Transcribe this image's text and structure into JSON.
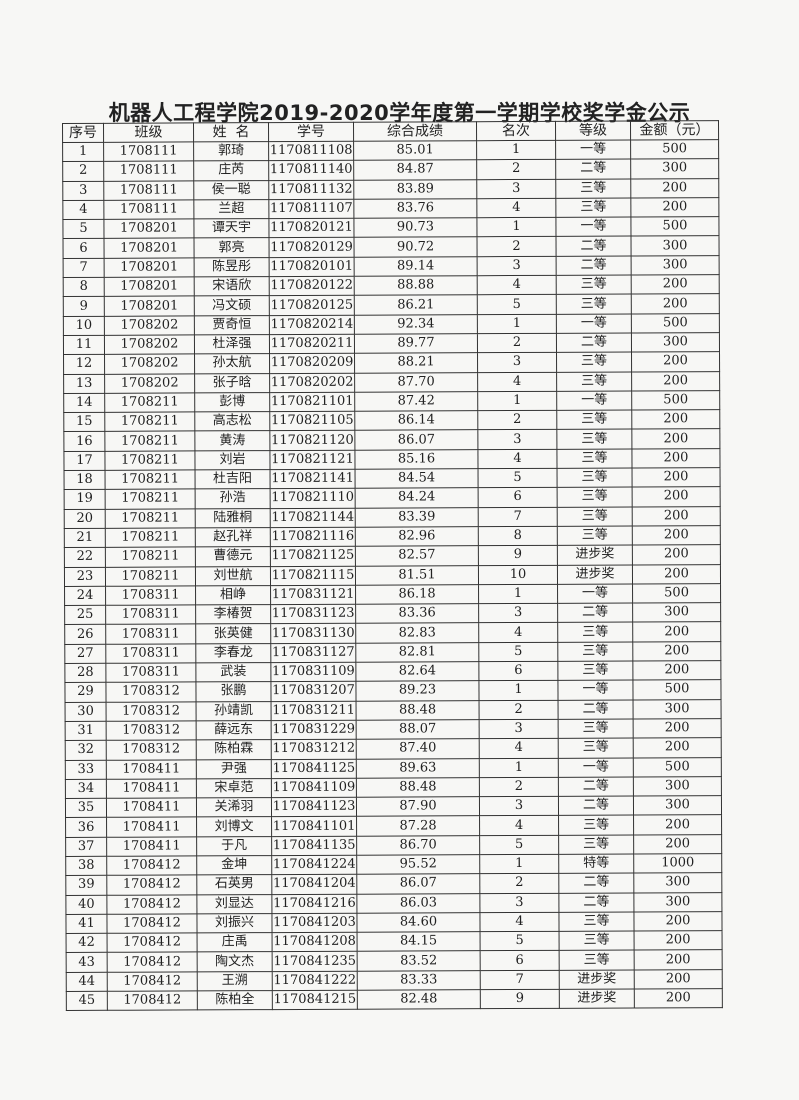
{
  "title": "机器人工程学院2019-2020学年度第一学期学校奖学金公示",
  "columns": [
    "序号",
    "班级",
    "姓  名",
    "学号",
    "综合成绩",
    "名次",
    "等级",
    "金额（元）"
  ],
  "rows": [
    [
      "1",
      "1708111",
      "郭琦",
      "1170811108",
      "85.01",
      "1",
      "一等",
      "500"
    ],
    [
      "2",
      "1708111",
      "庄芮",
      "1170811140",
      "84.87",
      "2",
      "二等",
      "300"
    ],
    [
      "3",
      "1708111",
      "侯一聪",
      "1170811132",
      "83.89",
      "3",
      "三等",
      "200"
    ],
    [
      "4",
      "1708111",
      "兰超",
      "1170811107",
      "83.76",
      "4",
      "三等",
      "200"
    ],
    [
      "5",
      "1708201",
      "谭天宇",
      "1170820121",
      "90.73",
      "1",
      "一等",
      "500"
    ],
    [
      "6",
      "1708201",
      "郭亮",
      "1170820129",
      "90.72",
      "2",
      "二等",
      "300"
    ],
    [
      "7",
      "1708201",
      "陈昱彤",
      "1170820101",
      "89.14",
      "3",
      "二等",
      "300"
    ],
    [
      "8",
      "1708201",
      "宋语欣",
      "1170820122",
      "88.88",
      "4",
      "三等",
      "200"
    ],
    [
      "9",
      "1708201",
      "冯文硕",
      "1170820125",
      "86.21",
      "5",
      "三等",
      "200"
    ],
    [
      "10",
      "1708202",
      "贾奇恒",
      "1170820214",
      "92.34",
      "1",
      "一等",
      "500"
    ],
    [
      "11",
      "1708202",
      "杜泽强",
      "1170820211",
      "89.77",
      "2",
      "二等",
      "300"
    ],
    [
      "12",
      "1708202",
      "孙太航",
      "1170820209",
      "88.21",
      "3",
      "三等",
      "200"
    ],
    [
      "13",
      "1708202",
      "张子晗",
      "1170820202",
      "87.70",
      "4",
      "三等",
      "200"
    ],
    [
      "14",
      "1708211",
      "彭博",
      "1170821101",
      "87.42",
      "1",
      "一等",
      "500"
    ],
    [
      "15",
      "1708211",
      "高志松",
      "1170821105",
      "86.14",
      "2",
      "三等",
      "200"
    ],
    [
      "16",
      "1708211",
      "黄涛",
      "1170821120",
      "86.07",
      "3",
      "三等",
      "200"
    ],
    [
      "17",
      "1708211",
      "刘岩",
      "1170821121",
      "85.16",
      "4",
      "三等",
      "200"
    ],
    [
      "18",
      "1708211",
      "杜吉阳",
      "1170821141",
      "84.54",
      "5",
      "三等",
      "200"
    ],
    [
      "19",
      "1708211",
      "孙浩",
      "1170821110",
      "84.24",
      "6",
      "三等",
      "200"
    ],
    [
      "20",
      "1708211",
      "陆雅桐",
      "1170821144",
      "83.39",
      "7",
      "三等",
      "200"
    ],
    [
      "21",
      "1708211",
      "赵孔祥",
      "1170821116",
      "82.96",
      "8",
      "三等",
      "200"
    ],
    [
      "22",
      "1708211",
      "曹德元",
      "1170821125",
      "82.57",
      "9",
      "进步奖",
      "200"
    ],
    [
      "23",
      "1708211",
      "刘世航",
      "1170821115",
      "81.51",
      "10",
      "进步奖",
      "200"
    ],
    [
      "24",
      "1708311",
      "相峥",
      "1170831121",
      "86.18",
      "1",
      "一等",
      "500"
    ],
    [
      "25",
      "1708311",
      "李椿贺",
      "1170831123",
      "83.36",
      "3",
      "二等",
      "300"
    ],
    [
      "26",
      "1708311",
      "张英健",
      "1170831130",
      "82.83",
      "4",
      "三等",
      "200"
    ],
    [
      "27",
      "1708311",
      "李春龙",
      "1170831127",
      "82.81",
      "5",
      "三等",
      "200"
    ],
    [
      "28",
      "1708311",
      "武装",
      "1170831109",
      "82.64",
      "6",
      "三等",
      "200"
    ],
    [
      "29",
      "1708312",
      "张鹏",
      "1170831207",
      "89.23",
      "1",
      "一等",
      "500"
    ],
    [
      "30",
      "1708312",
      "孙靖凯",
      "1170831211",
      "88.48",
      "2",
      "二等",
      "300"
    ],
    [
      "31",
      "1708312",
      "薛远东",
      "1170831229",
      "88.07",
      "3",
      "三等",
      "200"
    ],
    [
      "32",
      "1708312",
      "陈柏霖",
      "1170831212",
      "87.40",
      "4",
      "三等",
      "200"
    ],
    [
      "33",
      "1708411",
      "尹强",
      "1170841125",
      "89.63",
      "1",
      "一等",
      "500"
    ],
    [
      "34",
      "1708411",
      "宋卓范",
      "1170841109",
      "88.48",
      "2",
      "二等",
      "300"
    ],
    [
      "35",
      "1708411",
      "关浠羽",
      "1170841123",
      "87.90",
      "3",
      "二等",
      "300"
    ],
    [
      "36",
      "1708411",
      "刘博文",
      "1170841101",
      "87.28",
      "4",
      "三等",
      "200"
    ],
    [
      "37",
      "1708411",
      "于凡",
      "1170841135",
      "86.70",
      "5",
      "三等",
      "200"
    ],
    [
      "38",
      "1708412",
      "金坤",
      "1170841224",
      "95.52",
      "1",
      "特等",
      "1000"
    ],
    [
      "39",
      "1708412",
      "石英男",
      "1170841204",
      "86.07",
      "2",
      "二等",
      "300"
    ],
    [
      "40",
      "1708412",
      "刘显达",
      "1170841216",
      "86.03",
      "3",
      "二等",
      "300"
    ],
    [
      "41",
      "1708412",
      "刘振兴",
      "1170841203",
      "84.60",
      "4",
      "三等",
      "200"
    ],
    [
      "42",
      "1708412",
      "庄禹",
      "1170841208",
      "84.15",
      "5",
      "三等",
      "200"
    ],
    [
      "43",
      "1708412",
      "陶文杰",
      "1170841235",
      "83.52",
      "6",
      "三等",
      "200"
    ],
    [
      "44",
      "1708412",
      "王溯",
      "1170841222",
      "83.33",
      "7",
      "进步奖",
      "200"
    ],
    [
      "45",
      "1708412",
      "陈柏全",
      "1170841215",
      "82.48",
      "9",
      "进步奖",
      "200"
    ]
  ]
}
